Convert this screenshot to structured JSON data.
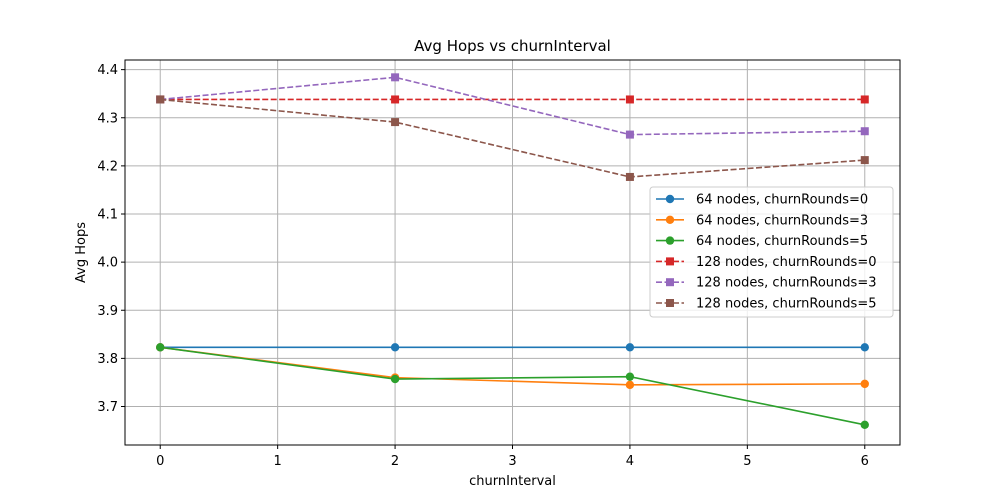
{
  "chart_data": {
    "type": "line",
    "title": "Avg Hops vs churnInterval",
    "xlabel": "churnInterval",
    "ylabel": "Avg Hops",
    "xlim": [
      -0.3,
      6.3
    ],
    "ylim": [
      3.62,
      4.42
    ],
    "xticks": [
      0,
      1,
      2,
      3,
      4,
      5,
      6
    ],
    "yticks": [
      3.7,
      3.8,
      3.9,
      4.0,
      4.1,
      4.2,
      4.3,
      4.4
    ],
    "xtick_labels": [
      "0",
      "1",
      "2",
      "3",
      "4",
      "5",
      "6"
    ],
    "ytick_labels": [
      "3.7",
      "3.8",
      "3.9",
      "4.0",
      "4.1",
      "4.2",
      "4.3",
      "4.4"
    ],
    "grid": true,
    "legend_position": "center-right",
    "x": [
      0,
      2,
      4,
      6
    ],
    "series": [
      {
        "name": "64 nodes, churnRounds=0",
        "values": [
          3.823,
          3.823,
          3.823,
          3.823
        ],
        "color": "#1f77b4",
        "dash": "solid",
        "marker": "circle"
      },
      {
        "name": "64 nodes, churnRounds=3",
        "values": [
          3.823,
          3.76,
          3.745,
          3.747
        ],
        "color": "#ff7f0e",
        "dash": "solid",
        "marker": "circle"
      },
      {
        "name": "64 nodes, churnRounds=5",
        "values": [
          3.823,
          3.757,
          3.762,
          3.662
        ],
        "color": "#2ca02c",
        "dash": "solid",
        "marker": "circle"
      },
      {
        "name": "128 nodes, churnRounds=0",
        "values": [
          4.338,
          4.338,
          4.338,
          4.338
        ],
        "color": "#d62728",
        "dash": "dashed",
        "marker": "square"
      },
      {
        "name": "128 nodes, churnRounds=3",
        "values": [
          4.338,
          4.384,
          4.265,
          4.272
        ],
        "color": "#9467bd",
        "dash": "dashed",
        "marker": "square"
      },
      {
        "name": "128 nodes, churnRounds=5",
        "values": [
          4.338,
          4.291,
          4.177,
          4.212
        ],
        "color": "#8c564b",
        "dash": "dashed",
        "marker": "square"
      }
    ]
  }
}
